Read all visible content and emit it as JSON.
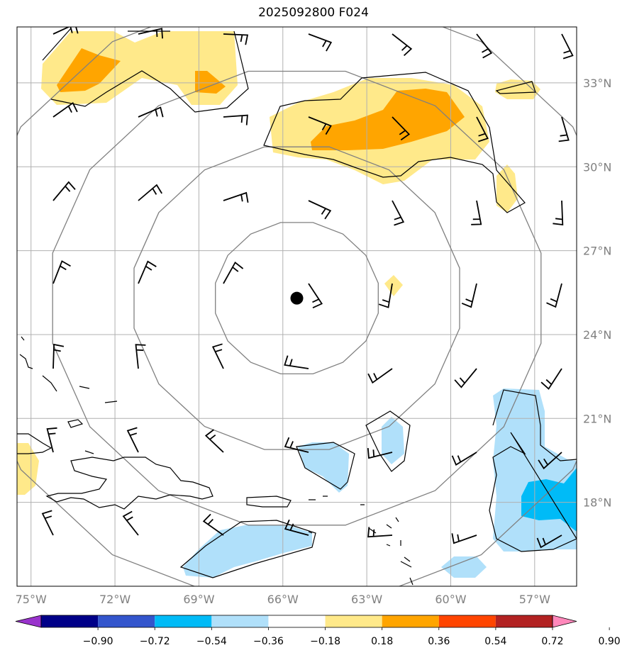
{
  "title": "2025092800 F024",
  "map": {
    "lon_range": [
      -75.5,
      -55.5
    ],
    "lat_range": [
      15.0,
      35.0
    ],
    "lon_ticks": [
      {
        "value": -75,
        "label": "75°W"
      },
      {
        "value": -72,
        "label": "72°W"
      },
      {
        "value": -69,
        "label": "69°W"
      },
      {
        "value": -66,
        "label": "66°W"
      },
      {
        "value": -63,
        "label": "63°W"
      },
      {
        "value": -60,
        "label": "60°W"
      },
      {
        "value": -57,
        "label": "57°W"
      }
    ],
    "lat_ticks": [
      {
        "value": 18,
        "label": "18°N"
      },
      {
        "value": 21,
        "label": "21°N"
      },
      {
        "value": 24,
        "label": "24°N"
      },
      {
        "value": 27,
        "label": "27°N"
      },
      {
        "value": 30,
        "label": "30°N"
      },
      {
        "value": 33,
        "label": "33°N"
      }
    ],
    "storm_center": {
      "lon": -65.5,
      "lat": 25.3
    },
    "range_rings_count": 4,
    "grid": true,
    "colors": {
      "grid": "#b0b0b0",
      "rings": "#808080",
      "coast": "#000000",
      "barbs": "#000000"
    }
  },
  "colorbar": {
    "ticks": [
      "−0.90",
      "−0.72",
      "−0.54",
      "−0.36",
      "−0.18",
      "0.18",
      "0.36",
      "0.54",
      "0.72",
      "0.90"
    ],
    "colors": [
      "#9933cc",
      "#000088",
      "#3355cc",
      "#00bbf7",
      "#b0e0fa",
      "#ffffff",
      "#ffe98a",
      "#ffa500",
      "#ff4500",
      "#b22222",
      "#ff88bb"
    ],
    "extend": "both"
  }
}
